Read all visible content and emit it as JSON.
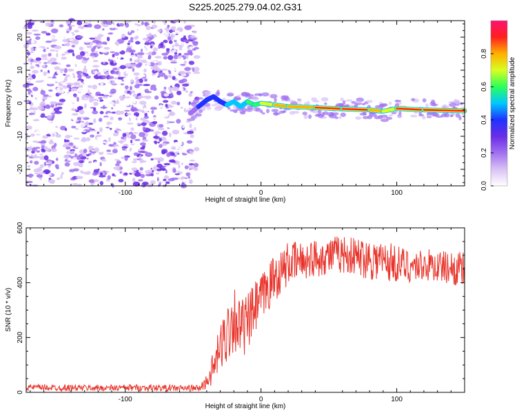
{
  "figure_title": "S225.2025.279.04.02.G31",
  "colors": {
    "snr_line": "#e8332a",
    "colormap": [
      "#ffffff",
      "#d9c2f5",
      "#a070f0",
      "#6a2ce6",
      "#1f33ff",
      "#00c8ff",
      "#2bff5a",
      "#d8ff20",
      "#ffb000",
      "#ff2020",
      "#ff1070"
    ]
  },
  "chart_data": [
    {
      "type": "heatmap",
      "name": "spectrogram",
      "xlabel": "Height of straight line (km)",
      "ylabel": "Frequency (Hz)",
      "xlim": [
        -173,
        150
      ],
      "ylim": [
        -25,
        25
      ],
      "x_ticks": [
        -100,
        0,
        100
      ],
      "x_tick_labels": [
        "-100",
        "0",
        "100"
      ],
      "y_ticks": [
        -20,
        -10,
        0,
        10,
        20
      ],
      "y_tick_labels": [
        "-20",
        "-10",
        "0",
        "10",
        "20"
      ],
      "noise_region_x": [
        -173,
        -47
      ],
      "signal_ridge": {
        "x": [
          -52,
          -46,
          -40,
          -35,
          -30,
          -25,
          -20,
          -15,
          -10,
          -5,
          0,
          10,
          20,
          40,
          60,
          80,
          90,
          100,
          120,
          150
        ],
        "freq": [
          -3,
          -1,
          1,
          2,
          0.5,
          -0.5,
          0.5,
          -1,
          0.5,
          -0.5,
          0,
          -0.5,
          -1,
          -1.3,
          -1.7,
          -2,
          -2.4,
          -1.6,
          -2,
          -2.3
        ],
        "amp": [
          0.15,
          0.3,
          0.4,
          0.45,
          0.35,
          0.5,
          0.55,
          0.45,
          0.5,
          0.6,
          0.65,
          0.7,
          0.8,
          0.75,
          0.95,
          0.9,
          0.6,
          0.8,
          0.95,
          0.9
        ]
      },
      "colorbar": {
        "label": "Normalized spectral amplitude",
        "range": [
          0,
          1
        ],
        "ticks": [
          "0.0",
          "0.2",
          "0.4",
          "0.6",
          "0.8"
        ]
      }
    },
    {
      "type": "line",
      "name": "snr",
      "xlabel": "Height of straight line (km)",
      "ylabel": "SNR (10 * v/v)",
      "xlim": [
        -173,
        150
      ],
      "ylim": [
        0,
        600
      ],
      "x_ticks": [
        -100,
        0,
        100
      ],
      "x_tick_labels": [
        "-100",
        "0",
        "100"
      ],
      "y_ticks": [
        0,
        200,
        400,
        600
      ],
      "y_tick_labels": [
        "0",
        "200",
        "400",
        "600"
      ],
      "series": [
        {
          "name": "SNR",
          "x": [
            -173,
            -150,
            -120,
            -90,
            -60,
            -45,
            -40,
            -35,
            -30,
            -25,
            -20,
            -15,
            -10,
            -5,
            0,
            5,
            10,
            15,
            20,
            30,
            40,
            50,
            60,
            70,
            80,
            90,
            100,
            110,
            120,
            130,
            140,
            150
          ],
          "mean": [
            18,
            17,
            16,
            17,
            15,
            15,
            40,
            90,
            160,
            220,
            280,
            230,
            250,
            300,
            340,
            380,
            420,
            440,
            470,
            480,
            490,
            500,
            505,
            495,
            490,
            480,
            470,
            460,
            465,
            460,
            455,
            445
          ],
          "spread": [
            12,
            12,
            12,
            12,
            12,
            12,
            30,
            60,
            90,
            120,
            130,
            110,
            110,
            100,
            90,
            90,
            90,
            80,
            80,
            70,
            70,
            70,
            70,
            70,
            80,
            80,
            70,
            60,
            60,
            60,
            60,
            70
          ]
        }
      ]
    }
  ]
}
